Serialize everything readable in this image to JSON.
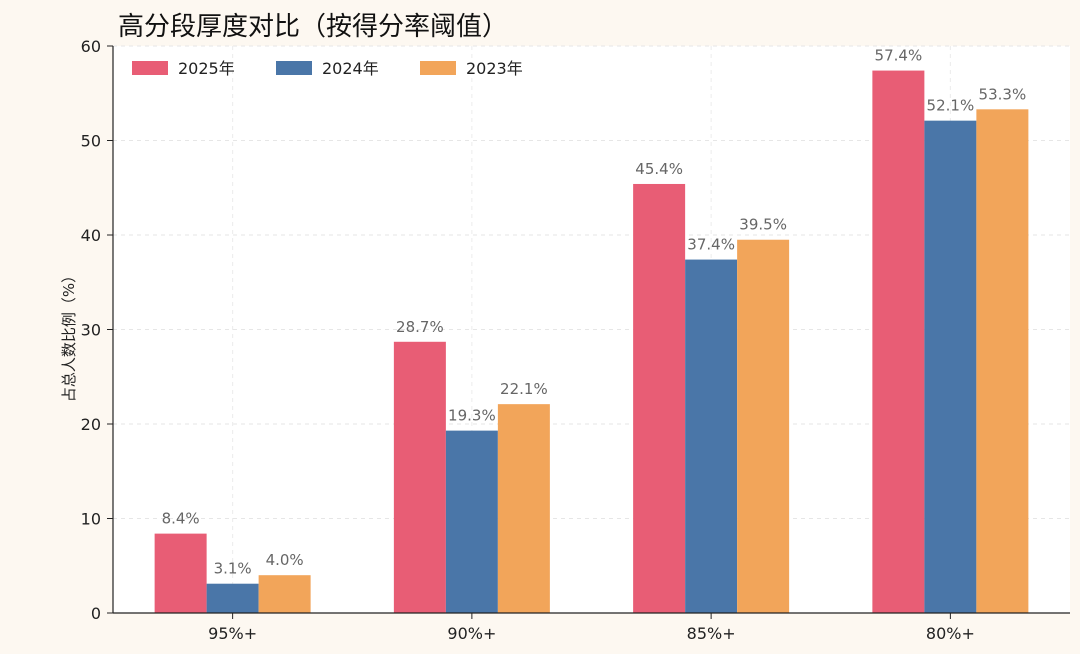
{
  "chart_data": {
    "type": "bar",
    "title": "高分段厚度对比（按得分率阈值）",
    "xlabel": "",
    "ylabel": "占总人数比例（%）",
    "ylim": [
      0,
      60
    ],
    "yticks": [
      0,
      10,
      20,
      30,
      40,
      50,
      60
    ],
    "categories": [
      "95%+",
      "90%+",
      "85%+",
      "80%+"
    ],
    "series": [
      {
        "name": "2025年",
        "color": "#e85d75",
        "values": [
          8.4,
          28.7,
          45.4,
          57.4
        ],
        "labels": [
          "8.4%",
          "28.7%",
          "45.4%",
          "57.4%"
        ]
      },
      {
        "name": "2024年",
        "color": "#4a76a8",
        "values": [
          3.1,
          19.3,
          37.4,
          52.1
        ],
        "labels": [
          "3.1%",
          "19.3%",
          "37.4%",
          "52.1%"
        ]
      },
      {
        "name": "2023年",
        "color": "#f2a55a",
        "values": [
          4.0,
          22.1,
          39.5,
          53.3
        ],
        "labels": [
          "4.0%",
          "22.1%",
          "39.5%",
          "53.3%"
        ]
      }
    ],
    "grid": true,
    "legend_position": "top-left"
  }
}
